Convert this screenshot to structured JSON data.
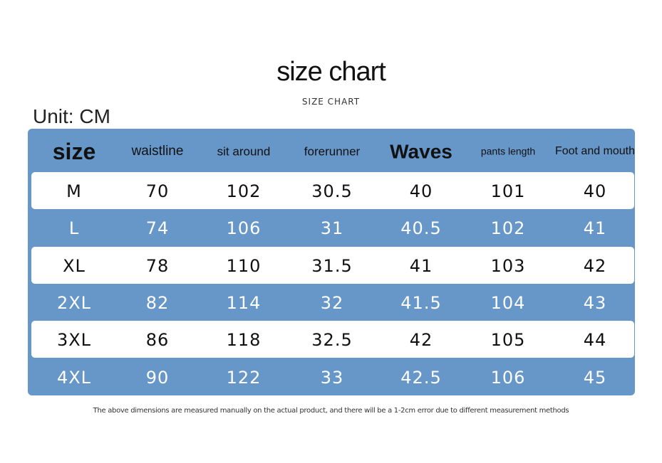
{
  "header": {
    "title": "size chart",
    "subtitle": "SIZE CHART",
    "unit": "Unit: CM"
  },
  "table": {
    "columns": [
      "size",
      "waistline",
      "sit around",
      "forerunner",
      "Waves",
      "pants length",
      "Foot and mouth"
    ],
    "rows": [
      [
        "M",
        70,
        102,
        30.5,
        40,
        101,
        40
      ],
      [
        "L",
        74,
        106,
        31,
        40.5,
        102,
        41
      ],
      [
        "XL",
        78,
        110,
        31.5,
        41,
        103,
        42
      ],
      [
        "2XL",
        82,
        114,
        32,
        41.5,
        104,
        43
      ],
      [
        "3XL",
        86,
        118,
        32.5,
        42,
        105,
        44
      ],
      [
        "4XL",
        90,
        122,
        33,
        42.5,
        106,
        45
      ]
    ]
  },
  "footnote": "The above dimensions are measured manually on the actual product, and there will be a 1-2cm error due to different measurement methods"
}
